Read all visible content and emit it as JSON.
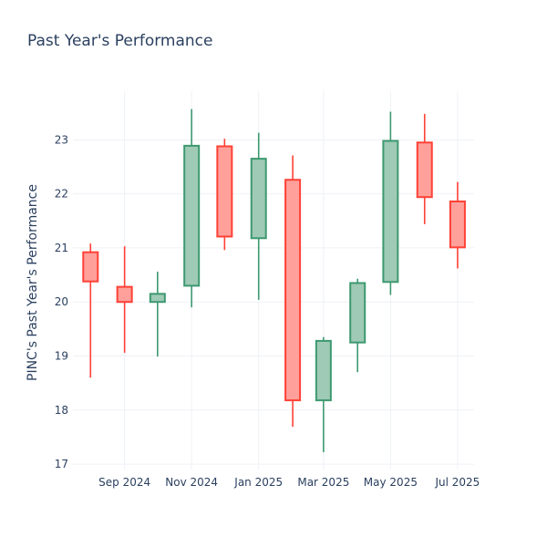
{
  "chart_data": {
    "type": "candlestick",
    "title": "Past Year's Performance",
    "ylabel": "PINC's Past Year's Performance",
    "xlabel": "",
    "ylim": [
      16.9,
      23.9
    ],
    "y_ticks": [
      17,
      18,
      19,
      20,
      21,
      22,
      23
    ],
    "x_range": [
      "2024-07-16",
      "2025-07-16"
    ],
    "x_ticks": [
      {
        "date": "2024-09-01",
        "label": "Sep 2024"
      },
      {
        "date": "2024-11-01",
        "label": "Nov 2024"
      },
      {
        "date": "2025-01-01",
        "label": "Jan 2025"
      },
      {
        "date": "2025-03-01",
        "label": "Mar 2025"
      },
      {
        "date": "2025-05-01",
        "label": "May 2025"
      },
      {
        "date": "2025-07-01",
        "label": "Jul 2025"
      }
    ],
    "grid": true,
    "colors": {
      "increasing_line": "#3d9970",
      "increasing_fill": "#9fcab5",
      "decreasing_line": "#ff4136",
      "decreasing_fill": "#ffa09b"
    },
    "candles": [
      {
        "date": "2024-08-01",
        "open": 20.92,
        "high": 21.08,
        "low": 18.6,
        "close": 20.38
      },
      {
        "date": "2024-09-01",
        "open": 20.28,
        "high": 21.03,
        "low": 19.06,
        "close": 20.0
      },
      {
        "date": "2024-10-01",
        "open": 20.0,
        "high": 20.56,
        "low": 18.99,
        "close": 20.15
      },
      {
        "date": "2024-11-01",
        "open": 20.3,
        "high": 23.57,
        "low": 19.9,
        "close": 22.89
      },
      {
        "date": "2024-12-01",
        "open": 22.88,
        "high": 23.02,
        "low": 20.96,
        "close": 21.21
      },
      {
        "date": "2025-01-01",
        "open": 21.18,
        "high": 23.13,
        "low": 20.04,
        "close": 22.65
      },
      {
        "date": "2025-02-01",
        "open": 22.26,
        "high": 22.71,
        "low": 17.69,
        "close": 18.18
      },
      {
        "date": "2025-03-01",
        "open": 18.18,
        "high": 19.35,
        "low": 17.22,
        "close": 19.28
      },
      {
        "date": "2025-04-01",
        "open": 19.25,
        "high": 20.43,
        "low": 18.7,
        "close": 20.35
      },
      {
        "date": "2025-05-01",
        "open": 20.37,
        "high": 23.52,
        "low": 20.13,
        "close": 22.98
      },
      {
        "date": "2025-06-01",
        "open": 22.95,
        "high": 23.48,
        "low": 21.44,
        "close": 21.94
      },
      {
        "date": "2025-07-01",
        "open": 21.86,
        "high": 22.22,
        "low": 20.62,
        "close": 21.01
      }
    ]
  }
}
